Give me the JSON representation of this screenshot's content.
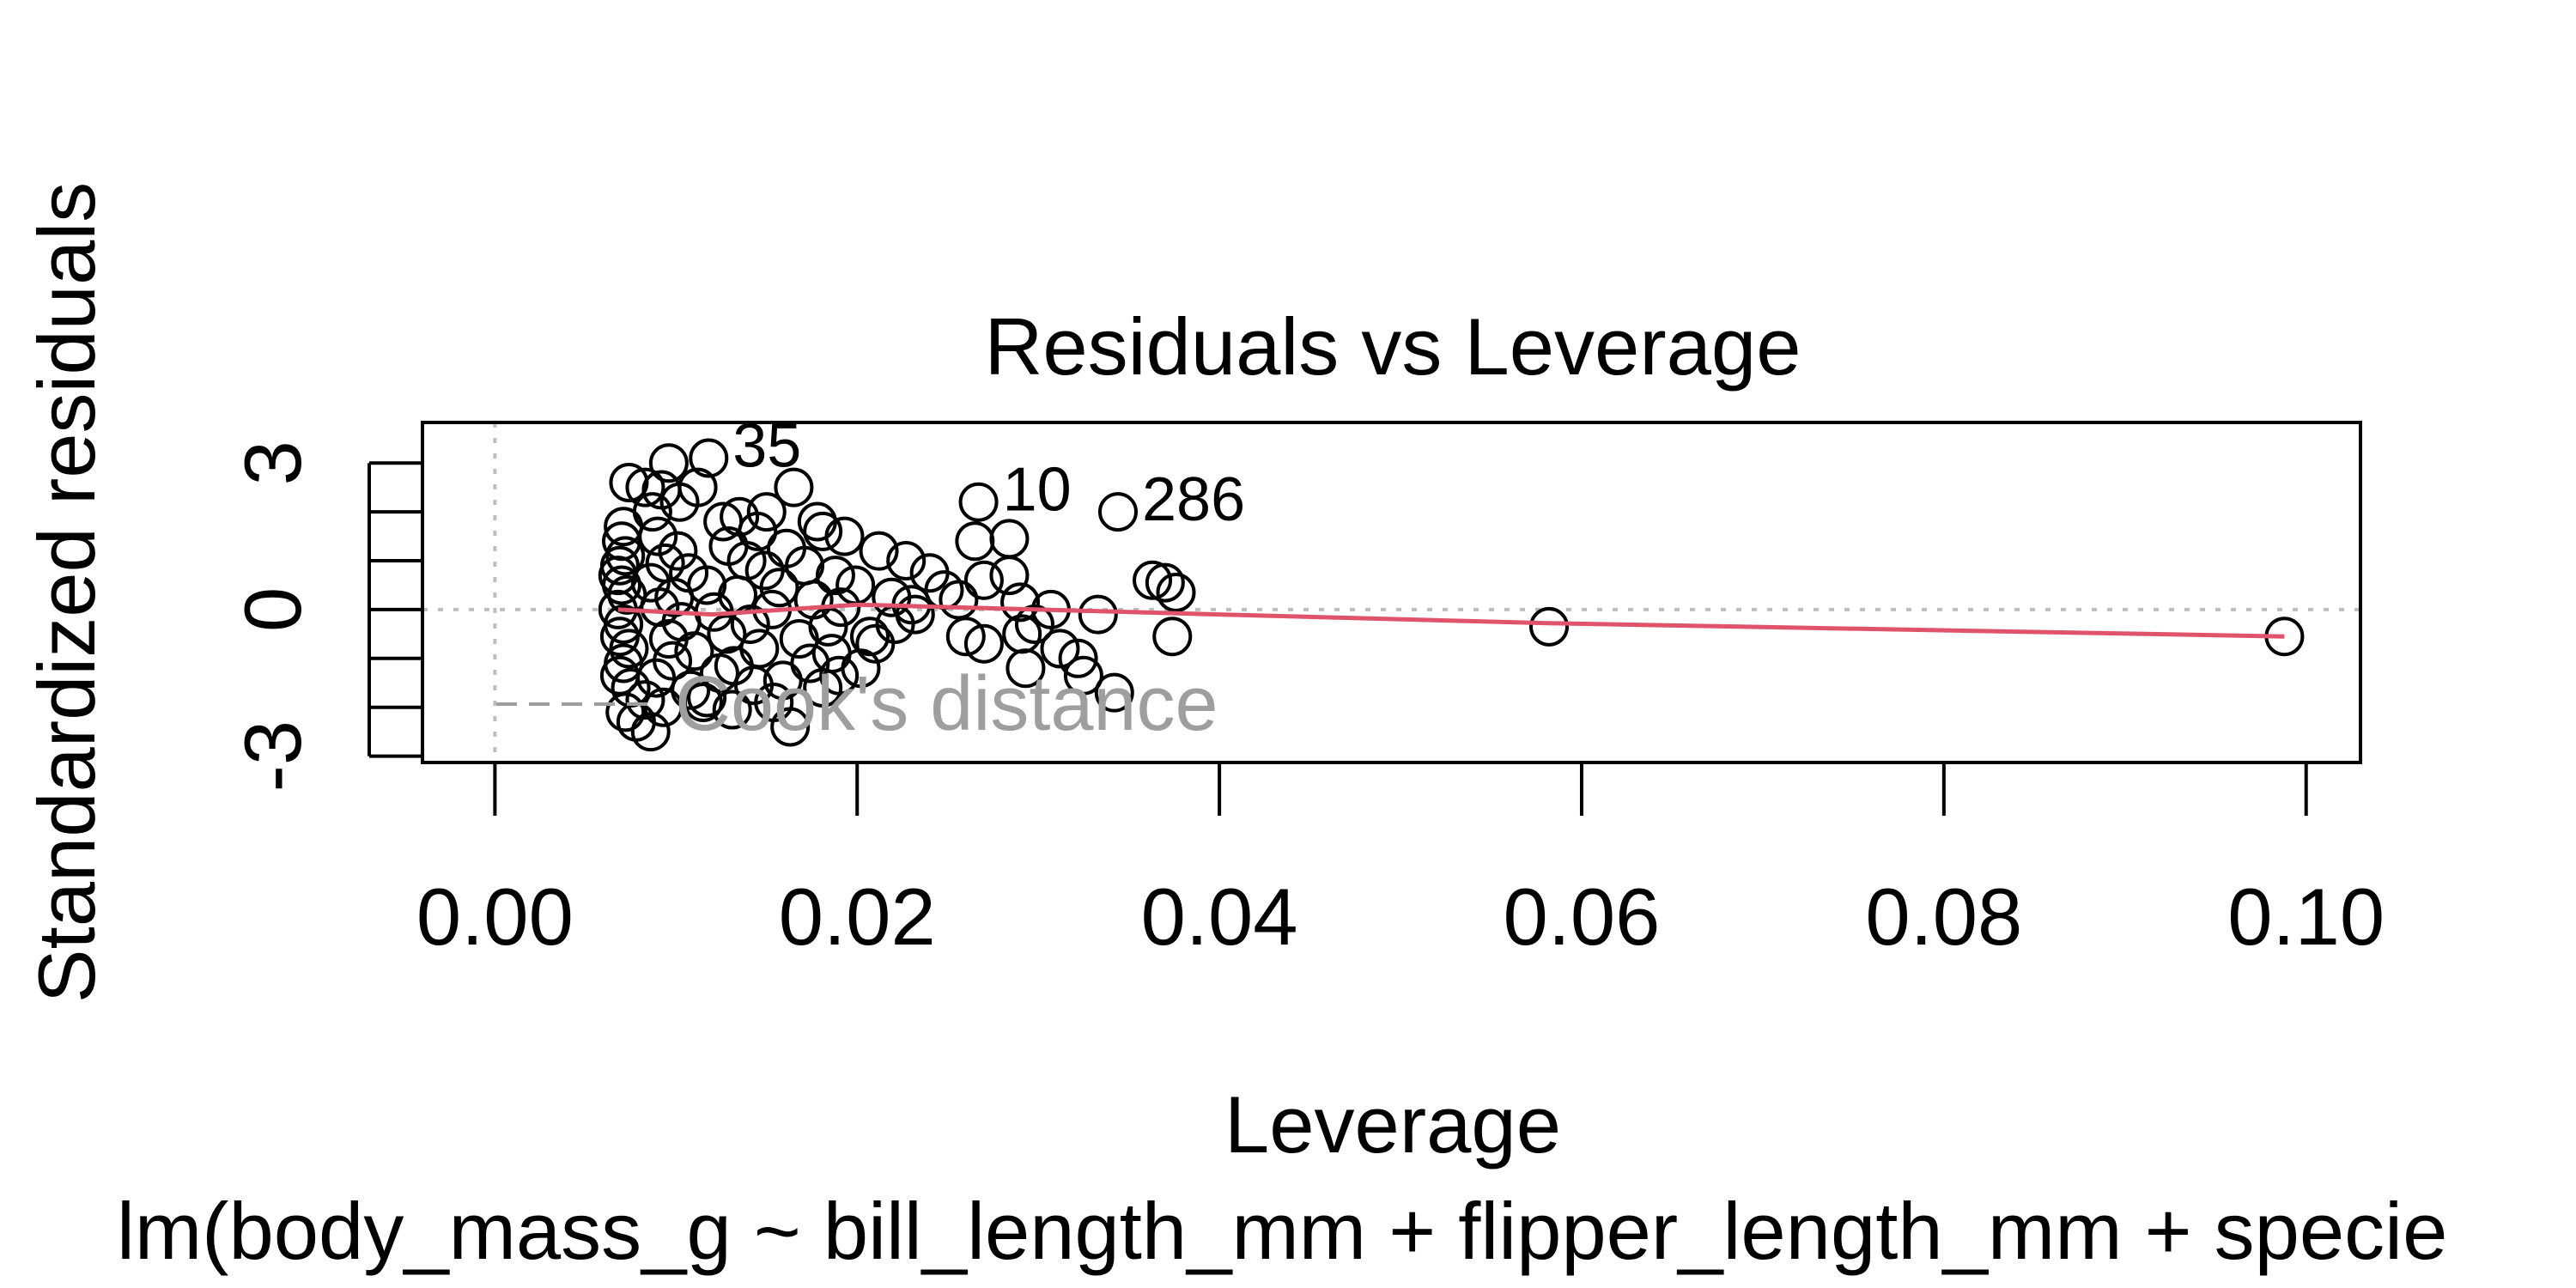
{
  "chart_data": {
    "type": "scatter",
    "title": "Residuals vs Leverage",
    "xlabel": "Leverage",
    "ylabel": "Standardized residuals",
    "subtitle": "lm(body_mass_g ~ bill_length_mm + flipper_length_mm + specie",
    "xlim": [
      -0.004,
      0.103
    ],
    "ylim": [
      -3.13,
      3.83
    ],
    "x_ticks": [
      {
        "value": 0.0,
        "label": "0.00"
      },
      {
        "value": 0.02,
        "label": "0.02"
      },
      {
        "value": 0.04,
        "label": "0.04"
      },
      {
        "value": 0.06,
        "label": "0.06"
      },
      {
        "value": 0.08,
        "label": "0.08"
      },
      {
        "value": 0.1,
        "label": "0.10"
      }
    ],
    "y_ticks": [
      {
        "value": -3,
        "label": "-3"
      },
      {
        "value": -2,
        "label": ""
      },
      {
        "value": -1,
        "label": ""
      },
      {
        "value": 0,
        "label": "0"
      },
      {
        "value": 1,
        "label": ""
      },
      {
        "value": 2,
        "label": ""
      },
      {
        "value": 3,
        "label": "3"
      }
    ],
    "grid": false,
    "reference_lines": {
      "horizontal": 0,
      "vertical": 0
    },
    "legend": {
      "entries": [
        {
          "label": "Cook's distance",
          "style": "dashed",
          "color": "#9e9e9e"
        }
      ],
      "placement": "bottom-left"
    },
    "points": [
      {
        "x": 0.0074,
        "y": 2.6
      },
      {
        "x": 0.0096,
        "y": 3.0
      },
      {
        "x": 0.0118,
        "y": 3.1
      },
      {
        "x": 0.0083,
        "y": 2.5
      },
      {
        "x": 0.0092,
        "y": 2.45
      },
      {
        "x": 0.0112,
        "y": 2.5
      },
      {
        "x": 0.0165,
        "y": 2.5
      },
      {
        "x": 0.0102,
        "y": 2.2
      },
      {
        "x": 0.0087,
        "y": 2.0
      },
      {
        "x": 0.0135,
        "y": 1.9
      },
      {
        "x": 0.015,
        "y": 2.0
      },
      {
        "x": 0.0178,
        "y": 1.8
      },
      {
        "x": 0.0071,
        "y": 1.7
      },
      {
        "x": 0.0126,
        "y": 1.8
      },
      {
        "x": 0.0181,
        "y": 1.6
      },
      {
        "x": 0.007,
        "y": 1.4
      },
      {
        "x": 0.009,
        "y": 1.5
      },
      {
        "x": 0.0145,
        "y": 1.6
      },
      {
        "x": 0.0193,
        "y": 1.5
      },
      {
        "x": 0.0072,
        "y": 1.1
      },
      {
        "x": 0.0101,
        "y": 1.2
      },
      {
        "x": 0.0129,
        "y": 1.3
      },
      {
        "x": 0.0161,
        "y": 1.25
      },
      {
        "x": 0.0212,
        "y": 1.2
      },
      {
        "x": 0.0069,
        "y": 0.9
      },
      {
        "x": 0.0094,
        "y": 0.95
      },
      {
        "x": 0.0139,
        "y": 1.0
      },
      {
        "x": 0.0171,
        "y": 0.9
      },
      {
        "x": 0.0227,
        "y": 1.0
      },
      {
        "x": 0.0068,
        "y": 0.7
      },
      {
        "x": 0.0107,
        "y": 0.75
      },
      {
        "x": 0.0149,
        "y": 0.8
      },
      {
        "x": 0.0188,
        "y": 0.7
      },
      {
        "x": 0.024,
        "y": 0.75
      },
      {
        "x": 0.007,
        "y": 0.5
      },
      {
        "x": 0.0086,
        "y": 0.55
      },
      {
        "x": 0.0117,
        "y": 0.5
      },
      {
        "x": 0.0157,
        "y": 0.45
      },
      {
        "x": 0.0199,
        "y": 0.5
      },
      {
        "x": 0.0248,
        "y": 0.4
      },
      {
        "x": 0.0073,
        "y": 0.3
      },
      {
        "x": 0.0099,
        "y": 0.25
      },
      {
        "x": 0.0134,
        "y": 0.3
      },
      {
        "x": 0.0176,
        "y": 0.2
      },
      {
        "x": 0.0219,
        "y": 0.25
      },
      {
        "x": 0.0256,
        "y": 0.2
      },
      {
        "x": 0.0068,
        "y": 0.0
      },
      {
        "x": 0.0091,
        "y": 0.05
      },
      {
        "x": 0.0121,
        "y": -0.05
      },
      {
        "x": 0.0153,
        "y": 0.0
      },
      {
        "x": 0.0191,
        "y": 0.05
      },
      {
        "x": 0.0232,
        "y": -0.1
      },
      {
        "x": 0.0071,
        "y": -0.3
      },
      {
        "x": 0.0103,
        "y": -0.25
      },
      {
        "x": 0.0141,
        "y": -0.3
      },
      {
        "x": 0.0184,
        "y": -0.35
      },
      {
        "x": 0.0221,
        "y": -0.3
      },
      {
        "x": 0.0069,
        "y": -0.55
      },
      {
        "x": 0.0096,
        "y": -0.6
      },
      {
        "x": 0.0128,
        "y": -0.5
      },
      {
        "x": 0.0168,
        "y": -0.6
      },
      {
        "x": 0.0207,
        "y": -0.55
      },
      {
        "x": 0.0074,
        "y": -0.8
      },
      {
        "x": 0.011,
        "y": -0.85
      },
      {
        "x": 0.0146,
        "y": -0.8
      },
      {
        "x": 0.0186,
        "y": -0.9
      },
      {
        "x": 0.0071,
        "y": -1.1
      },
      {
        "x": 0.0098,
        "y": -1.05
      },
      {
        "x": 0.0132,
        "y": -1.15
      },
      {
        "x": 0.0174,
        "y": -1.1
      },
      {
        "x": 0.0202,
        "y": -1.2
      },
      {
        "x": 0.0069,
        "y": -1.35
      },
      {
        "x": 0.0089,
        "y": -1.4
      },
      {
        "x": 0.0124,
        "y": -1.3
      },
      {
        "x": 0.0159,
        "y": -1.45
      },
      {
        "x": 0.019,
        "y": -1.35
      },
      {
        "x": 0.0075,
        "y": -1.6
      },
      {
        "x": 0.0108,
        "y": -1.65
      },
      {
        "x": 0.0143,
        "y": -1.55
      },
      {
        "x": 0.0181,
        "y": -1.6
      },
      {
        "x": 0.0083,
        "y": -1.85
      },
      {
        "x": 0.0117,
        "y": -1.8
      },
      {
        "x": 0.0154,
        "y": -1.9
      },
      {
        "x": 0.0072,
        "y": -2.1
      },
      {
        "x": 0.0093,
        "y": -2.0
      },
      {
        "x": 0.0131,
        "y": -2.05
      },
      {
        "x": 0.0078,
        "y": -2.3
      },
      {
        "x": 0.0086,
        "y": -2.5
      },
      {
        "x": 0.0163,
        "y": -2.4
      },
      {
        "x": 0.0115,
        "y": -1.9
      },
      {
        "x": 0.021,
        "y": -0.7
      },
      {
        "x": 0.023,
        "y": 0.1
      },
      {
        "x": 0.026,
        "y": -0.55
      },
      {
        "x": 0.027,
        "y": 0.6
      },
      {
        "x": 0.0284,
        "y": 0.7
      },
      {
        "x": 0.0265,
        "y": 1.4
      },
      {
        "x": 0.0284,
        "y": 1.45
      },
      {
        "x": 0.027,
        "y": -0.7
      },
      {
        "x": 0.0291,
        "y": -0.5
      },
      {
        "x": 0.029,
        "y": 0.15
      },
      {
        "x": 0.0298,
        "y": -0.3
      },
      {
        "x": 0.0307,
        "y": 0.0
      },
      {
        "x": 0.0293,
        "y": -1.2
      },
      {
        "x": 0.0312,
        "y": -0.8
      },
      {
        "x": 0.0322,
        "y": -1.0
      },
      {
        "x": 0.0325,
        "y": -1.35
      },
      {
        "x": 0.0333,
        "y": -0.1
      },
      {
        "x": 0.0342,
        "y": -1.7
      },
      {
        "x": 0.0363,
        "y": 0.6
      },
      {
        "x": 0.037,
        "y": 0.55
      },
      {
        "x": 0.0376,
        "y": 0.35
      },
      {
        "x": 0.0374,
        "y": -0.55
      },
      {
        "x": 0.0267,
        "y": 2.2
      },
      {
        "x": 0.0344,
        "y": 2.0
      },
      {
        "x": 0.0582,
        "y": -0.35
      },
      {
        "x": 0.0988,
        "y": -0.55
      }
    ],
    "point_labels": [
      {
        "label": "35",
        "x": 0.0118,
        "y": 3.1
      },
      {
        "label": "10",
        "x": 0.0267,
        "y": 2.2
      },
      {
        "label": "286",
        "x": 0.0344,
        "y": 2.0
      }
    ],
    "smoother": {
      "color": "#df536b",
      "x": [
        0.0068,
        0.012,
        0.02,
        0.03,
        0.04,
        0.0582,
        0.0988
      ],
      "y": [
        0.0,
        -0.1,
        0.1,
        0.0,
        -0.1,
        -0.28,
        -0.55
      ]
    },
    "colors": {
      "points": "#000000",
      "smoother": "#df536b",
      "reference": "#bebebe",
      "cooks": "#9e9e9e",
      "text": "#000000"
    }
  }
}
